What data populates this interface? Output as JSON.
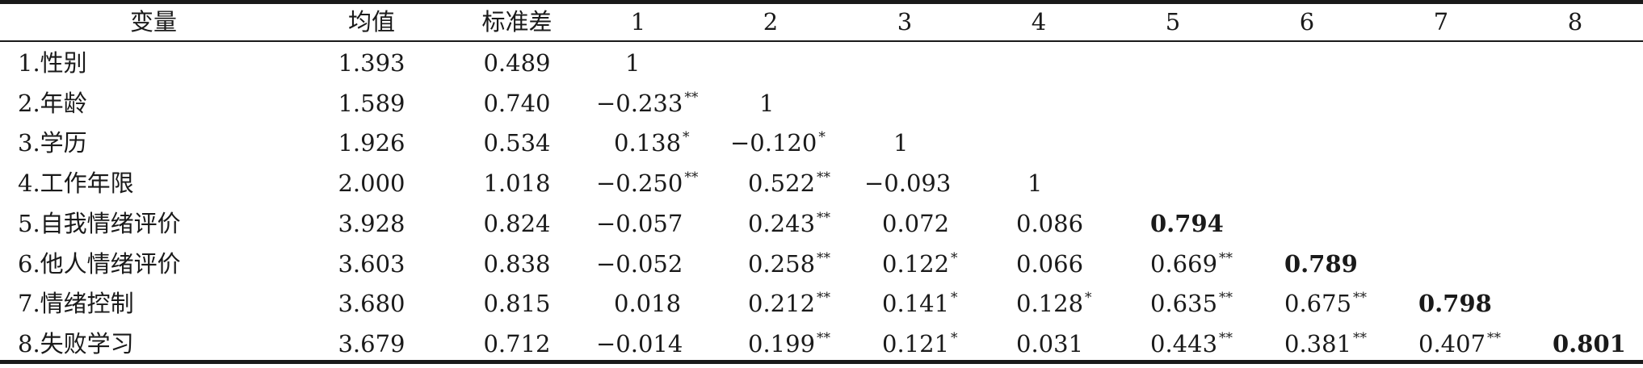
{
  "table": {
    "headers": [
      "变量",
      "均值",
      "标准差",
      "1",
      "2",
      "3",
      "4",
      "5",
      "6",
      "7",
      "8"
    ],
    "rows": [
      {
        "label": "1.性别",
        "mean": "1.393",
        "sd": "0.489",
        "cells": [
          {
            "v": "1",
            "s": ""
          }
        ]
      },
      {
        "label": "2.年龄",
        "mean": "1.589",
        "sd": "0.740",
        "cells": [
          {
            "v": "−0.233",
            "s": "**"
          },
          {
            "v": "1",
            "s": ""
          }
        ]
      },
      {
        "label": "3.学历",
        "mean": "1.926",
        "sd": "0.534",
        "cells": [
          {
            "v": "0.138",
            "s": "*"
          },
          {
            "v": "−0.120",
            "s": "*"
          },
          {
            "v": "1",
            "s": ""
          }
        ]
      },
      {
        "label": "4.工作年限",
        "mean": "2.000",
        "sd": "1.018",
        "cells": [
          {
            "v": "−0.250",
            "s": "**"
          },
          {
            "v": "0.522",
            "s": "**"
          },
          {
            "v": "−0.093",
            "s": ""
          },
          {
            "v": "1",
            "s": ""
          }
        ]
      },
      {
        "label": "5.自我情绪评价",
        "mean": "3.928",
        "sd": "0.824",
        "cells": [
          {
            "v": "−0.057",
            "s": ""
          },
          {
            "v": "0.243",
            "s": "**"
          },
          {
            "v": "0.072",
            "s": ""
          },
          {
            "v": "0.086",
            "s": ""
          },
          {
            "v": "0.794",
            "s": "",
            "b": true
          }
        ]
      },
      {
        "label": "6.他人情绪评价",
        "mean": "3.603",
        "sd": "0.838",
        "cells": [
          {
            "v": "−0.052",
            "s": ""
          },
          {
            "v": "0.258",
            "s": "**"
          },
          {
            "v": "0.122",
            "s": "*"
          },
          {
            "v": "0.066",
            "s": ""
          },
          {
            "v": "0.669",
            "s": "**"
          },
          {
            "v": "0.789",
            "s": "",
            "b": true
          }
        ]
      },
      {
        "label": "7.情绪控制",
        "mean": "3.680",
        "sd": "0.815",
        "cells": [
          {
            "v": "0.018",
            "s": ""
          },
          {
            "v": "0.212",
            "s": "**"
          },
          {
            "v": "0.141",
            "s": "*"
          },
          {
            "v": "0.128",
            "s": "*"
          },
          {
            "v": "0.635",
            "s": "**"
          },
          {
            "v": "0.675",
            "s": "**"
          },
          {
            "v": "0.798",
            "s": "",
            "b": true
          }
        ]
      },
      {
        "label": "8.失败学习",
        "mean": "3.679",
        "sd": "0.712",
        "cells": [
          {
            "v": "−0.014",
            "s": ""
          },
          {
            "v": "0.199",
            "s": "**"
          },
          {
            "v": "0.121",
            "s": "*"
          },
          {
            "v": "0.031",
            "s": ""
          },
          {
            "v": "0.443",
            "s": "**"
          },
          {
            "v": "0.381",
            "s": "**"
          },
          {
            "v": "0.407",
            "s": "**"
          },
          {
            "v": "0.801",
            "s": "",
            "b": true
          }
        ]
      }
    ]
  }
}
